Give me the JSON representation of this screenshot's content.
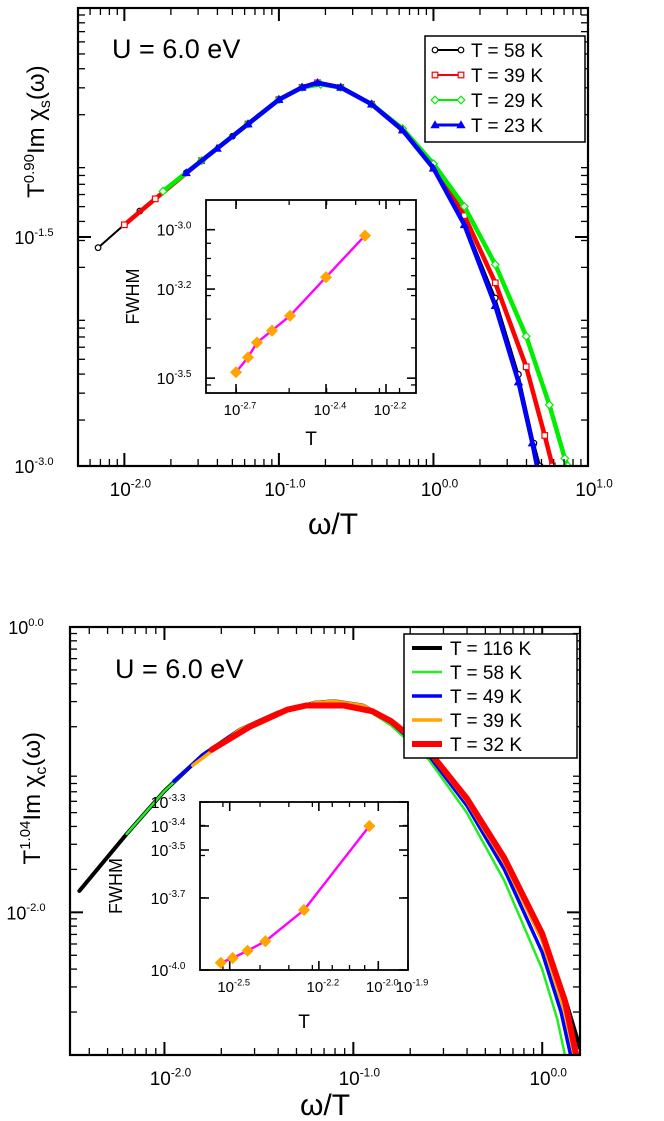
{
  "chart_data": [
    {
      "type": "line",
      "panel": "top",
      "annotation": "U = 6.0 eV",
      "ylabel": {
        "base": "T",
        "exp": "0.90",
        "rest": "Im χ",
        "sub": "s",
        "arg": "(ω)"
      },
      "xlabel": "ω/T",
      "x_scale": "log",
      "y_scale": "log",
      "xlim": [
        -2.3,
        1.0
      ],
      "ylim": [
        -3.0,
        0.0
      ],
      "x_ticks": [
        {
          "v": -2.0,
          "label": "-2.0"
        },
        {
          "v": -1.0,
          "label": "-1.0"
        },
        {
          "v": 0.0,
          "label": "0.0"
        },
        {
          "v": 1.0,
          "label": "1.0"
        }
      ],
      "y_ticks": [
        {
          "v": -1.5,
          "label": "-1.5"
        },
        {
          "v": -3.0,
          "label": "-3.0"
        }
      ],
      "legend_position": "top-right",
      "series": [
        {
          "name": "T = 58 K",
          "color": "#000000",
          "marker": "circle",
          "points": [
            [
              -2.17,
              -1.57
            ],
            [
              -1.9,
              -1.33
            ],
            [
              -1.6,
              -1.08
            ],
            [
              -1.3,
              -0.84
            ],
            [
              -1.0,
              -0.6
            ],
            [
              -0.85,
              -0.52
            ],
            [
              -0.75,
              -0.49
            ],
            [
              -0.6,
              -0.52
            ],
            [
              -0.4,
              -0.63
            ],
            [
              -0.2,
              -0.8
            ],
            [
              0.0,
              -1.05
            ],
            [
              0.2,
              -1.4
            ],
            [
              0.4,
              -1.9
            ],
            [
              0.55,
              -2.4
            ],
            [
              0.65,
              -2.85
            ],
            [
              0.69,
              -3.0
            ]
          ]
        },
        {
          "name": "T = 39 K",
          "color": "#ff0000",
          "marker": "square",
          "points": [
            [
              -2.0,
              -1.42
            ],
            [
              -1.8,
              -1.25
            ],
            [
              -1.5,
              -1.0
            ],
            [
              -1.2,
              -0.76
            ],
            [
              -1.0,
              -0.6
            ],
            [
              -0.85,
              -0.52
            ],
            [
              -0.75,
              -0.49
            ],
            [
              -0.6,
              -0.52
            ],
            [
              -0.4,
              -0.63
            ],
            [
              -0.2,
              -0.8
            ],
            [
              0.0,
              -1.04
            ],
            [
              0.2,
              -1.36
            ],
            [
              0.4,
              -1.8
            ],
            [
              0.6,
              -2.35
            ],
            [
              0.72,
              -2.8
            ],
            [
              0.77,
              -3.0
            ]
          ]
        },
        {
          "name": "T = 29 K",
          "color": "#00ee00",
          "marker": "diamond",
          "points": [
            [
              -1.75,
              -1.2
            ],
            [
              -1.5,
              -1.0
            ],
            [
              -1.2,
              -0.76
            ],
            [
              -1.0,
              -0.6
            ],
            [
              -0.85,
              -0.52
            ],
            [
              -0.73,
              -0.5
            ],
            [
              -0.6,
              -0.52
            ],
            [
              -0.4,
              -0.63
            ],
            [
              -0.2,
              -0.79
            ],
            [
              0.0,
              -1.02
            ],
            [
              0.2,
              -1.3
            ],
            [
              0.4,
              -1.68
            ],
            [
              0.6,
              -2.15
            ],
            [
              0.75,
              -2.6
            ],
            [
              0.85,
              -2.95
            ],
            [
              0.87,
              -3.0
            ]
          ]
        },
        {
          "name": "T = 23 K",
          "color": "#0000ff",
          "marker": "triangle",
          "points": [
            [
              -1.6,
              -1.08
            ],
            [
              -1.4,
              -0.92
            ],
            [
              -1.2,
              -0.76
            ],
            [
              -1.0,
              -0.6
            ],
            [
              -0.85,
              -0.52
            ],
            [
              -0.75,
              -0.49
            ],
            [
              -0.6,
              -0.52
            ],
            [
              -0.4,
              -0.63
            ],
            [
              -0.2,
              -0.8
            ],
            [
              0.0,
              -1.05
            ],
            [
              0.2,
              -1.42
            ],
            [
              0.4,
              -1.95
            ],
            [
              0.55,
              -2.45
            ],
            [
              0.64,
              -2.85
            ],
            [
              0.67,
              -3.0
            ]
          ]
        }
      ],
      "inset": {
        "xlabel": "T",
        "ylabel": "FWHM",
        "xlim": [
          -2.8,
          -2.1
        ],
        "ylim": [
          -3.55,
          -2.9
        ],
        "x_ticks": [
          {
            "v": -2.7,
            "label": "-2.7"
          },
          {
            "v": -2.4,
            "label": "-2.4"
          },
          {
            "v": -2.2,
            "label": "-2.2"
          }
        ],
        "y_ticks": [
          {
            "v": -3.0,
            "label": "-3.0"
          },
          {
            "v": -3.2,
            "label": "-3.2"
          },
          {
            "v": -3.5,
            "label": "-3.5"
          }
        ],
        "line_color": "#ff00ff",
        "marker_color": "#ffa500",
        "points": [
          [
            -2.7,
            -3.48
          ],
          [
            -2.66,
            -3.43
          ],
          [
            -2.63,
            -3.38
          ],
          [
            -2.58,
            -3.34
          ],
          [
            -2.52,
            -3.29
          ],
          [
            -2.4,
            -3.16
          ],
          [
            -2.27,
            -3.02
          ]
        ]
      }
    },
    {
      "type": "line",
      "panel": "bottom",
      "annotation": "U = 6.0 eV",
      "ylabel": {
        "base": "T",
        "exp": "1.04",
        "rest": "Im χ",
        "sub": "c",
        "arg": "(ω)"
      },
      "xlabel": "ω/T",
      "x_scale": "log",
      "y_scale": "log",
      "xlim": [
        -2.5,
        0.2
      ],
      "ylim": [
        -3.0,
        0.0
      ],
      "x_ticks": [
        {
          "v": -2.0,
          "label": "-2.0"
        },
        {
          "v": -1.0,
          "label": "-1.0"
        },
        {
          "v": 0.0,
          "label": "0.0"
        }
      ],
      "y_ticks": [
        {
          "v": 0.0,
          "label": "0.0"
        },
        {
          "v": -2.0,
          "label": "-2.0"
        }
      ],
      "legend_position": "top-right",
      "series": [
        {
          "name": "T = 116 K",
          "color": "#000000",
          "points": [
            [
              -2.45,
              -1.85
            ],
            [
              -2.2,
              -1.45
            ],
            [
              -2.0,
              -1.15
            ],
            [
              -1.8,
              -0.9
            ],
            [
              -1.6,
              -0.72
            ],
            [
              -1.4,
              -0.6
            ],
            [
              -1.2,
              -0.53
            ],
            [
              -1.1,
              -0.52
            ],
            [
              -0.95,
              -0.55
            ],
            [
              -0.8,
              -0.66
            ],
            [
              -0.6,
              -0.87
            ],
            [
              -0.4,
              -1.2
            ],
            [
              -0.2,
              -1.62
            ],
            [
              0.0,
              -2.15
            ],
            [
              0.12,
              -2.6
            ],
            [
              0.2,
              -2.95
            ]
          ]
        },
        {
          "name": "T = 58 K",
          "color": "#22ee22",
          "points": [
            [
              -2.2,
              -1.45
            ],
            [
              -2.0,
              -1.15
            ],
            [
              -1.8,
              -0.9
            ],
            [
              -1.6,
              -0.72
            ],
            [
              -1.4,
              -0.6
            ],
            [
              -1.2,
              -0.53
            ],
            [
              -1.1,
              -0.52
            ],
            [
              -0.95,
              -0.56
            ],
            [
              -0.8,
              -0.69
            ],
            [
              -0.6,
              -0.93
            ],
            [
              -0.4,
              -1.3
            ],
            [
              -0.2,
              -1.78
            ],
            [
              0.0,
              -2.4
            ],
            [
              0.08,
              -2.75
            ],
            [
              0.12,
              -3.0
            ]
          ]
        },
        {
          "name": "T = 49 K",
          "color": "#0000ff",
          "points": [
            [
              -1.95,
              -1.08
            ],
            [
              -1.8,
              -0.9
            ],
            [
              -1.6,
              -0.72
            ],
            [
              -1.4,
              -0.6
            ],
            [
              -1.2,
              -0.53
            ],
            [
              -1.1,
              -0.52
            ],
            [
              -0.95,
              -0.55
            ],
            [
              -0.8,
              -0.67
            ],
            [
              -0.6,
              -0.9
            ],
            [
              -0.4,
              -1.25
            ],
            [
              -0.2,
              -1.7
            ],
            [
              0.0,
              -2.28
            ],
            [
              0.1,
              -2.7
            ],
            [
              0.15,
              -3.0
            ]
          ]
        },
        {
          "name": "T = 39 K",
          "color": "#ffa500",
          "points": [
            [
              -1.85,
              -0.97
            ],
            [
              -1.6,
              -0.72
            ],
            [
              -1.4,
              -0.6
            ],
            [
              -1.2,
              -0.53
            ],
            [
              -1.1,
              -0.52
            ],
            [
              -0.95,
              -0.55
            ],
            [
              -0.8,
              -0.66
            ],
            [
              -0.6,
              -0.88
            ],
            [
              -0.4,
              -1.22
            ],
            [
              -0.2,
              -1.65
            ],
            [
              0.0,
              -2.2
            ],
            [
              0.12,
              -2.7
            ],
            [
              0.17,
              -3.0
            ]
          ]
        },
        {
          "name": "T = 32 K",
          "color": "#ff0000",
          "points": [
            [
              -1.75,
              -0.86
            ],
            [
              -1.55,
              -0.7
            ],
            [
              -1.35,
              -0.58
            ],
            [
              -1.25,
              -0.55
            ],
            [
              -1.05,
              -0.55
            ],
            [
              -0.9,
              -0.59
            ],
            [
              -0.8,
              -0.66
            ],
            [
              -0.6,
              -0.87
            ],
            [
              -0.4,
              -1.2
            ],
            [
              -0.2,
              -1.62
            ],
            [
              0.0,
              -2.15
            ],
            [
              0.12,
              -2.62
            ],
            [
              0.18,
              -3.0
            ]
          ]
        }
      ],
      "inset": {
        "xlabel": "T",
        "ylabel": "FWHM",
        "xlim": [
          -2.6,
          -1.9
        ],
        "ylim": [
          -4.0,
          -3.3
        ],
        "x_ticks": [
          {
            "v": -2.5,
            "label": "-2.5"
          },
          {
            "v": -2.2,
            "label": "-2.2"
          },
          {
            "v": -2.0,
            "label": "-2.0"
          },
          {
            "v": -1.9,
            "label": "-1.9"
          }
        ],
        "y_ticks": [
          {
            "v": -3.3,
            "label": "-3.3"
          },
          {
            "v": -3.4,
            "label": "-3.4"
          },
          {
            "v": -3.5,
            "label": "-3.5"
          },
          {
            "v": -3.7,
            "label": "-3.7"
          },
          {
            "v": -4.0,
            "label": "-4.0"
          }
        ],
        "line_color": "#ff00ff",
        "marker_color": "#ffa500",
        "points": [
          [
            -2.53,
            -3.97
          ],
          [
            -2.49,
            -3.95
          ],
          [
            -2.44,
            -3.92
          ],
          [
            -2.38,
            -3.88
          ],
          [
            -2.25,
            -3.75
          ],
          [
            -2.03,
            -3.4
          ]
        ]
      }
    }
  ]
}
